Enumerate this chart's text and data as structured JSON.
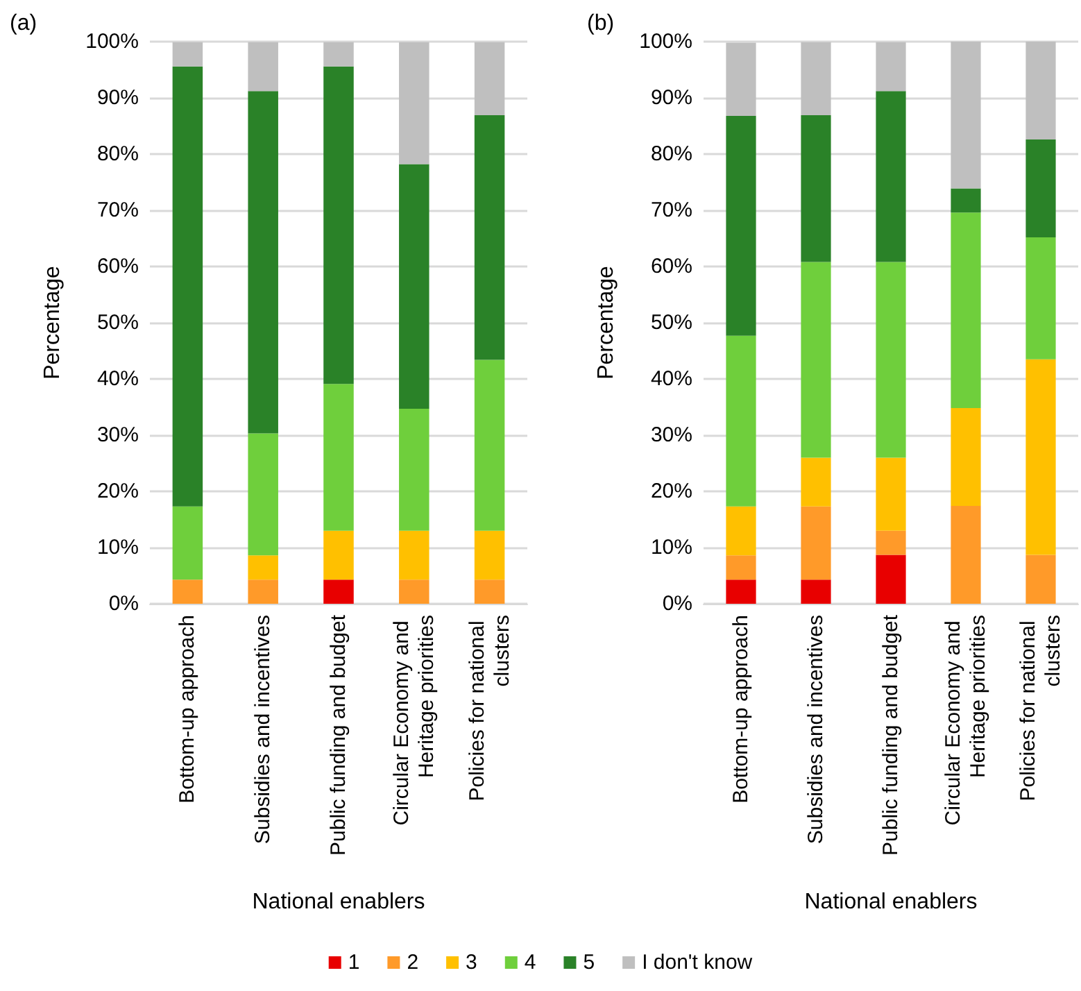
{
  "chart_data": [
    {
      "type": "bar",
      "title": "(a)",
      "xlabel": "National enablers",
      "ylabel": "Percentage",
      "stacked": true,
      "grid": "y",
      "legend": "bottom",
      "categories": [
        "Bottom-up approach",
        "Subsidies and incentives",
        "Public funding and budget",
        "Circular Economy and Heritage priorities",
        "Policies for national clusters"
      ],
      "ylim": [
        0,
        100
      ],
      "yticks": [
        {
          "value": 0,
          "label": "0%"
        },
        {
          "value": 10,
          "label": "10%"
        },
        {
          "value": 20,
          "label": "20%"
        },
        {
          "value": 30,
          "label": "30%"
        },
        {
          "value": 40,
          "label": "40%"
        },
        {
          "value": 50,
          "label": "50%"
        },
        {
          "value": 60,
          "label": "60%"
        },
        {
          "value": 70,
          "label": "70%"
        },
        {
          "value": 80,
          "label": "80%"
        },
        {
          "value": 90,
          "label": "90%"
        },
        {
          "value": 100,
          "label": "100%"
        }
      ],
      "series": [
        {
          "name": "1",
          "color": "#e80000",
          "values": [
            0,
            0,
            4.3,
            0,
            0
          ]
        },
        {
          "name": "2",
          "color": "#ff9a29",
          "values": [
            4.3,
            4.3,
            0,
            4.3,
            4.3
          ]
        },
        {
          "name": "3",
          "color": "#ffc000",
          "values": [
            0,
            4.3,
            8.7,
            8.7,
            8.7
          ]
        },
        {
          "name": "4",
          "color": "#6fcf3c",
          "values": [
            13.0,
            21.7,
            26.1,
            21.7,
            30.4
          ]
        },
        {
          "name": "5",
          "color": "#2a8228",
          "values": [
            78.3,
            60.9,
            56.5,
            43.5,
            43.5
          ]
        },
        {
          "name": "I don't know",
          "color": "#bfbfbf",
          "values": [
            4.3,
            8.7,
            4.3,
            21.7,
            13.0
          ]
        }
      ]
    },
    {
      "type": "bar",
      "title": "(b)",
      "xlabel": "National enablers",
      "ylabel": "Percentage",
      "stacked": true,
      "grid": "y",
      "categories": [
        "Bottom-up approach",
        "Subsidies and incentives",
        "Public funding and budget",
        "Circular Economy and Heritage priorities",
        "Policies for national clusters"
      ],
      "ylim": [
        0,
        100
      ],
      "yticks": [
        {
          "value": 0,
          "label": "0%"
        },
        {
          "value": 10,
          "label": "10%"
        },
        {
          "value": 20,
          "label": "20%"
        },
        {
          "value": 30,
          "label": "30%"
        },
        {
          "value": 40,
          "label": "40%"
        },
        {
          "value": 50,
          "label": "50%"
        },
        {
          "value": 60,
          "label": "60%"
        },
        {
          "value": 70,
          "label": "70%"
        },
        {
          "value": 80,
          "label": "80%"
        },
        {
          "value": 90,
          "label": "90%"
        },
        {
          "value": 100,
          "label": "100%"
        }
      ],
      "series": [
        {
          "color": "#e80000",
          "values": [
            4.3,
            4.3,
            8.7,
            0,
            0
          ]
        },
        {
          "color": "#ff9a29",
          "values": [
            4.3,
            13.0,
            4.3,
            17.4,
            8.7
          ]
        },
        {
          "color": "#ffc000",
          "values": [
            8.7,
            8.7,
            13.0,
            17.4,
            34.8
          ]
        },
        {
          "color": "#6fcf3c",
          "values": [
            30.4,
            34.8,
            34.8,
            34.8,
            21.7
          ]
        },
        {
          "color": "#2a8228",
          "values": [
            39.1,
            26.1,
            30.4,
            4.3,
            17.4
          ]
        },
        {
          "color": "#bfbfbf",
          "values": [
            13.0,
            13.0,
            8.7,
            26.1,
            17.4
          ]
        }
      ]
    }
  ]
}
